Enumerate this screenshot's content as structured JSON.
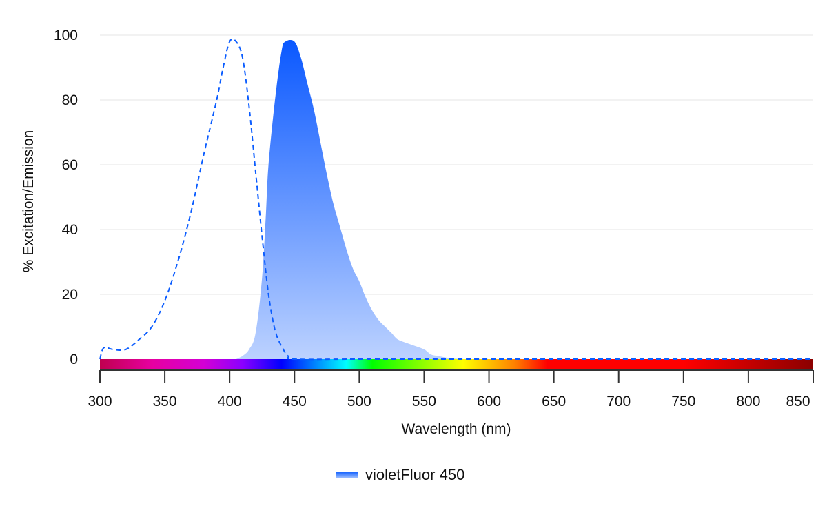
{
  "chart_data": {
    "type": "area",
    "title": "",
    "xlabel": "Wavelength (nm)",
    "ylabel": "% Excitation/Emission",
    "xlim": [
      300,
      850
    ],
    "ylim": [
      0,
      100
    ],
    "x_ticks": [
      300,
      350,
      400,
      450,
      500,
      550,
      600,
      650,
      700,
      750,
      800,
      850
    ],
    "y_ticks": [
      0,
      20,
      40,
      60,
      80,
      100
    ],
    "grid": true,
    "legend_position": "bottom",
    "series": [
      {
        "name": "violetFluor 450 excitation",
        "style": "dashed-line",
        "color": "#0a5cff",
        "x": [
          300,
          303,
          310,
          320,
          330,
          340,
          350,
          360,
          370,
          380,
          390,
          395,
          400,
          405,
          410,
          415,
          420,
          425,
          430,
          435,
          440,
          445,
          450,
          500,
          600,
          700,
          800,
          850
        ],
        "values": [
          0,
          3.5,
          3,
          3,
          6,
          10,
          18,
          30,
          45,
          63,
          80,
          90,
          98,
          98,
          93,
          78,
          58,
          38,
          20,
          9,
          4,
          1,
          0,
          0,
          0,
          0,
          0,
          0
        ]
      },
      {
        "name": "violetFluor 450 emission",
        "style": "filled-area",
        "color": "#0a5cff",
        "x": [
          405,
          410,
          415,
          420,
          425,
          428,
          430,
          435,
          440,
          443,
          450,
          455,
          460,
          465,
          470,
          475,
          480,
          485,
          490,
          495,
          500,
          505,
          510,
          515,
          520,
          525,
          530,
          540,
          550,
          555,
          560,
          570,
          580
        ],
        "values": [
          0,
          1,
          3,
          8,
          25,
          45,
          60,
          80,
          95,
          98,
          98,
          93,
          85,
          77,
          67,
          57,
          48,
          41,
          34,
          28,
          24,
          19,
          15,
          12,
          10,
          8,
          6,
          4.5,
          3,
          1.5,
          1,
          0.3,
          0
        ]
      }
    ],
    "spectrum_bar": {
      "stops": [
        {
          "nm": 300,
          "color": "#c0004f"
        },
        {
          "nm": 340,
          "color": "#e600a0"
        },
        {
          "nm": 380,
          "color": "#d400d4"
        },
        {
          "nm": 410,
          "color": "#8a00ff"
        },
        {
          "nm": 440,
          "color": "#0000ff"
        },
        {
          "nm": 460,
          "color": "#0066ff"
        },
        {
          "nm": 490,
          "color": "#00ffff"
        },
        {
          "nm": 510,
          "color": "#00ff00"
        },
        {
          "nm": 580,
          "color": "#ffff00"
        },
        {
          "nm": 620,
          "color": "#ff8000"
        },
        {
          "nm": 645,
          "color": "#ff0000"
        },
        {
          "nm": 750,
          "color": "#ff0000"
        },
        {
          "nm": 850,
          "color": "#8b0000"
        }
      ]
    }
  },
  "legend": {
    "items": [
      {
        "label": "violetFluor 450",
        "color": "#0a5cff"
      }
    ]
  }
}
